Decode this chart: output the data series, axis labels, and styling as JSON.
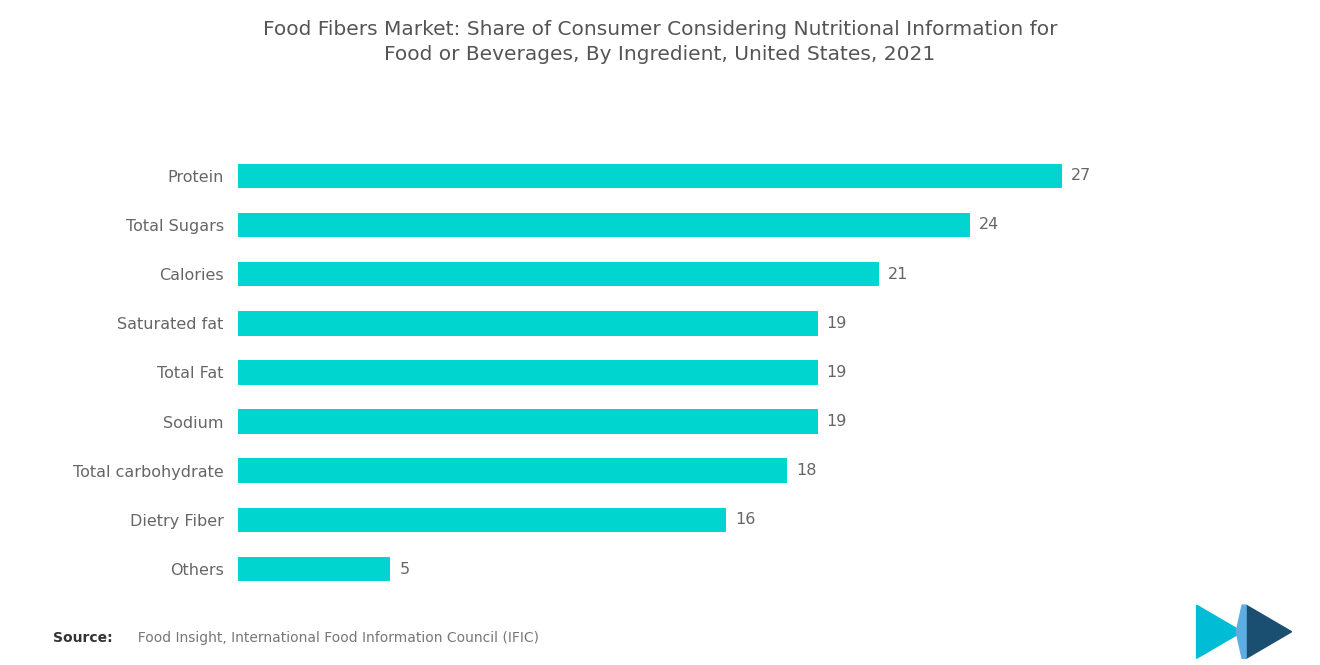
{
  "title": "Food Fibers Market: Share of Consumer Considering Nutritional Information for\nFood or Beverages, By Ingredient, United States, 2021",
  "categories": [
    "Protein",
    "Total Sugars",
    "Calories",
    "Saturated fat",
    "Total Fat",
    "Sodium",
    "Total carbohydrate",
    "Dietry Fiber",
    "Others"
  ],
  "values": [
    27,
    24,
    21,
    19,
    19,
    19,
    18,
    16,
    5
  ],
  "bar_color": "#00D5D0",
  "background_color": "#ffffff",
  "title_color": "#555555",
  "label_color": "#666666",
  "value_color": "#666666",
  "source_bold": "Source:",
  "source_text": "  Food Insight, International Food Information Council (IFIC)",
  "xlim": [
    0,
    32
  ],
  "title_fontsize": 14.5,
  "label_fontsize": 11.5,
  "value_fontsize": 11.5,
  "source_fontsize": 10
}
